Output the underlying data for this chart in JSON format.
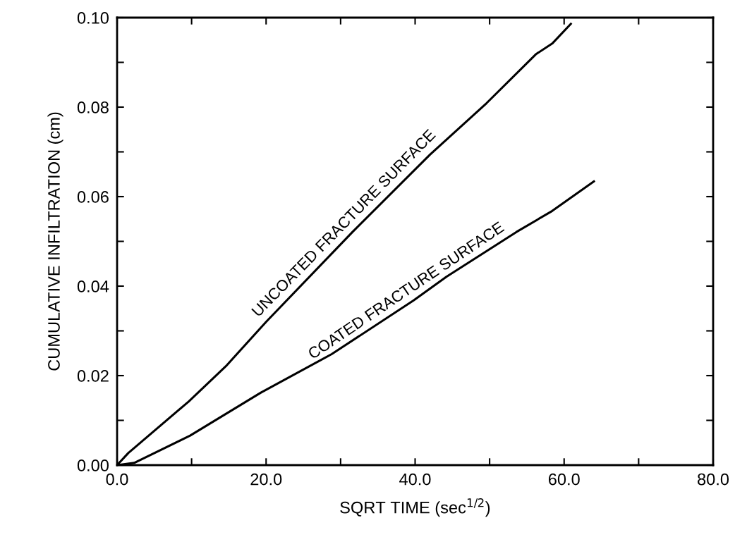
{
  "chart_data": {
    "type": "line",
    "xlabel": "SQRT TIME (sec$^{1/2}$)",
    "ylabel": "CUMULATIVE INFILTRATION (cm)",
    "series": [
      {
        "name": "UNCOATED FRACTURE SURFACE",
        "color": "#000000",
        "x": [
          0,
          1.5,
          9.6,
          14.6,
          20.0,
          31.6,
          42.0,
          49.6,
          56.2,
          58.4,
          60.9
        ],
        "values": [
          0,
          0.0027,
          0.0142,
          0.0221,
          0.032,
          0.0521,
          0.0694,
          0.0809,
          0.0918,
          0.0942,
          0.0986
        ]
      },
      {
        "name": "COATED FRACTURE SURFACE",
        "color": "#000000",
        "x": [
          0,
          2.3,
          9.8,
          19.3,
          28.8,
          39.8,
          44.2,
          53.6,
          58.4,
          64.0
        ],
        "values": [
          0,
          0.0005,
          0.0066,
          0.0162,
          0.0248,
          0.0368,
          0.0421,
          0.0521,
          0.0568,
          0.0634
        ]
      }
    ],
    "xlim": [
      0,
      80
    ],
    "ylim": [
      0,
      0.1
    ],
    "xticks": [
      {
        "value": 0,
        "label": "0.0"
      },
      {
        "value": 10,
        "label": null
      },
      {
        "value": 20,
        "label": "20.0"
      },
      {
        "value": 30,
        "label": null
      },
      {
        "value": 40,
        "label": "40.0"
      },
      {
        "value": 50,
        "label": null
      },
      {
        "value": 60,
        "label": "60.0"
      },
      {
        "value": 70,
        "label": null
      },
      {
        "value": 80,
        "label": "80.0"
      }
    ],
    "yticks": [
      {
        "value": 0,
        "label": "0.00"
      },
      {
        "value": 0.01,
        "label": null
      },
      {
        "value": 0.02,
        "label": "0.02"
      },
      {
        "value": 0.03,
        "label": null
      },
      {
        "value": 0.04,
        "label": "0.04"
      },
      {
        "value": 0.05,
        "label": null
      },
      {
        "value": 0.06,
        "label": "0.06"
      },
      {
        "value": 0.07,
        "label": null
      },
      {
        "value": 0.08,
        "label": "0.08"
      },
      {
        "value": 0.09,
        "label": null
      },
      {
        "value": 0.1,
        "label": "0.10"
      }
    ],
    "grid": false,
    "legend": false,
    "marker": "none",
    "line_style": "solid"
  }
}
